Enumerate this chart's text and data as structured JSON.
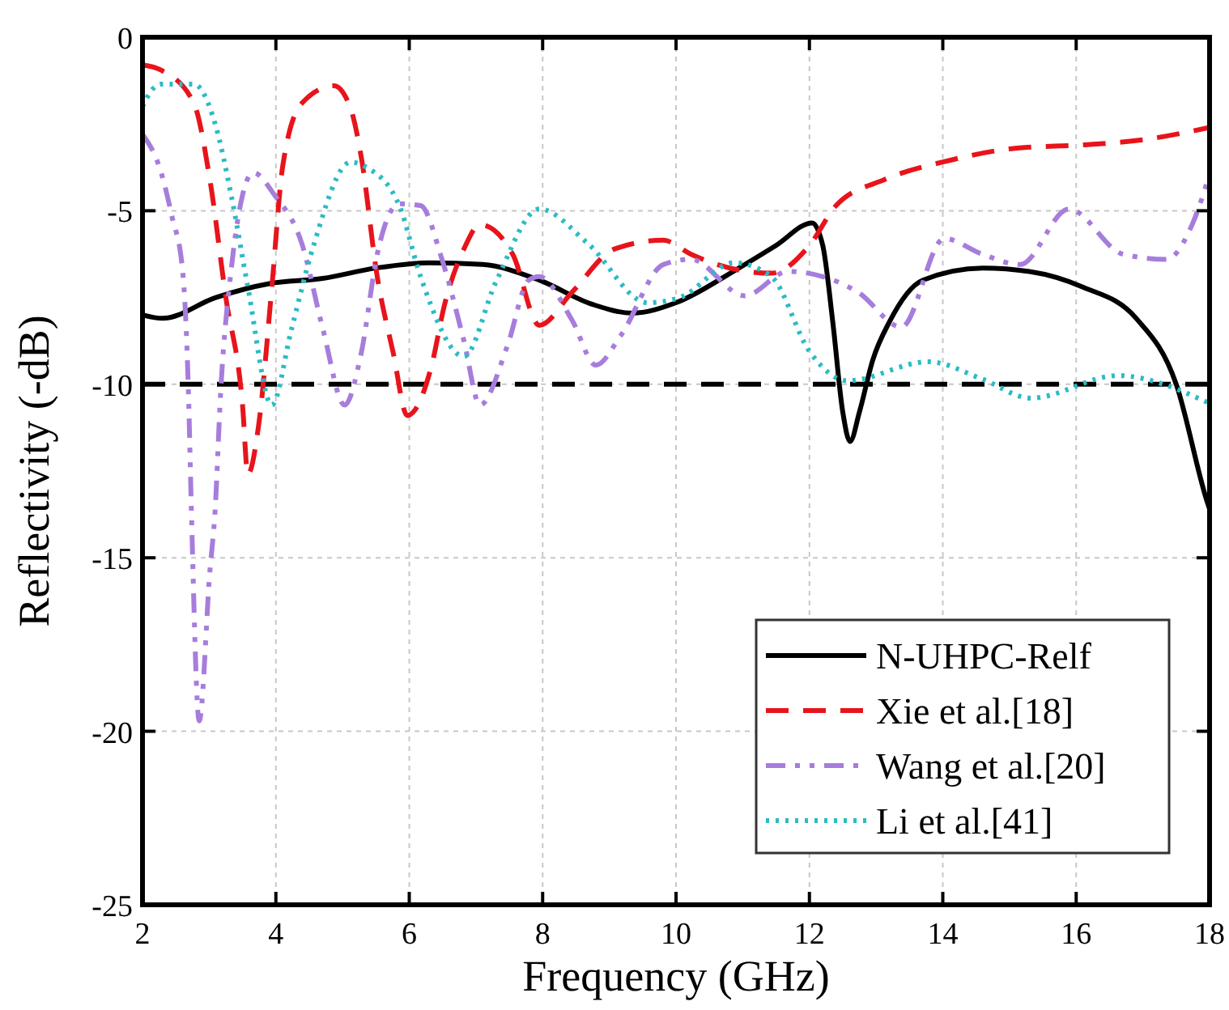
{
  "chart_data": {
    "type": "line",
    "xlabel": "Frequency (GHz)",
    "ylabel": "Reflectivity (-dB)",
    "xlim": [
      2,
      18
    ],
    "xticks": [
      2,
      4,
      6,
      8,
      10,
      12,
      14,
      16,
      18
    ],
    "ylim": [
      -25,
      0
    ],
    "yticks": [
      -25,
      -20,
      -15,
      -10,
      -5,
      0
    ],
    "grid": true,
    "legend": "bottom right",
    "ref_lines": [
      {
        "axis": "y",
        "value": -10,
        "color": "#000000",
        "line_style": "dashed"
      }
    ],
    "series": [
      {
        "name": "N-UHPC-Relf",
        "color": "#000000",
        "line_style": "solid",
        "x": [
          2,
          2.3,
          3.1,
          3.9,
          4.7,
          5.5,
          6.3,
          7.1,
          7.95,
          8.75,
          9.35,
          10.0,
          10.9,
          11.5,
          12.04,
          12.2,
          12.35,
          12.5,
          12.61,
          12.75,
          12.95,
          13.2,
          13.7,
          14.6,
          15.3,
          16.1,
          16.9,
          17.5,
          17.95,
          18
        ],
        "values": [
          -8.0,
          -8.1,
          -7.5,
          -7.1,
          -6.95,
          -6.65,
          -6.5,
          -6.55,
          -7.0,
          -7.7,
          -7.95,
          -7.65,
          -6.7,
          -6.0,
          -5.35,
          -6.0,
          -8.2,
          -10.8,
          -11.65,
          -10.8,
          -9.3,
          -8.2,
          -7.0,
          -6.65,
          -6.75,
          -7.2,
          -8.1,
          -10.0,
          -13.3,
          -13.6
        ]
      },
      {
        "name": "Xie et al.[18]",
        "color": "#e8141b",
        "line_style": "dashed",
        "x": [
          2,
          2.28,
          2.77,
          3.01,
          3.25,
          3.5,
          3.58,
          3.74,
          3.94,
          4.1,
          4.39,
          4.87,
          5.12,
          5.28,
          5.52,
          5.76,
          5.97,
          6.33,
          6.53,
          6.82,
          7.06,
          7.55,
          7.95,
          8.44,
          9.08,
          9.81,
          10.22,
          10.54,
          11.43,
          12.0,
          12.4,
          13.13,
          14.1,
          15.08,
          16.13,
          17.02,
          18
        ],
        "values": [
          -0.8,
          -0.95,
          -1.9,
          -4.1,
          -7.5,
          -10.6,
          -12.6,
          -11.2,
          -7.2,
          -3.75,
          -1.9,
          -1.4,
          -2.05,
          -3.45,
          -6.9,
          -9.1,
          -10.9,
          -9.5,
          -7.7,
          -6.1,
          -5.4,
          -6.25,
          -8.3,
          -7.35,
          -6.1,
          -5.85,
          -6.25,
          -6.5,
          -6.8,
          -6.0,
          -4.85,
          -4.1,
          -3.55,
          -3.2,
          -3.1,
          -2.95,
          -2.6
        ]
      },
      {
        "name": "Wang et al.[20]",
        "color": "#a77ddc",
        "line_style": "dashdot",
        "x": [
          2,
          2.28,
          2.44,
          2.6,
          2.69,
          2.73,
          2.85,
          3.01,
          3.09,
          3.17,
          3.33,
          3.5,
          3.66,
          3.98,
          4.39,
          4.71,
          5.03,
          5.28,
          5.52,
          5.85,
          6.17,
          6.49,
          6.82,
          7.06,
          7.47,
          7.79,
          7.95,
          8.44,
          8.8,
          9.17,
          9.81,
          10.22,
          11.03,
          11.68,
          12.73,
          13.38,
          14.02,
          14.59,
          15.16,
          15.89,
          16.7,
          17.35,
          17.75,
          18
        ],
        "values": [
          -2.8,
          -3.9,
          -5.15,
          -6.7,
          -10.3,
          -13.4,
          -19.7,
          -15.4,
          -13.6,
          -10.3,
          -6.7,
          -4.55,
          -3.9,
          -4.55,
          -5.95,
          -8.45,
          -10.6,
          -9.1,
          -6.25,
          -4.8,
          -4.85,
          -6.4,
          -8.75,
          -10.6,
          -8.9,
          -7.0,
          -6.9,
          -8.15,
          -9.45,
          -8.6,
          -6.55,
          -6.4,
          -7.45,
          -6.75,
          -7.35,
          -8.35,
          -5.8,
          -6.25,
          -6.55,
          -4.95,
          -6.25,
          -6.4,
          -5.35,
          -3.95
        ]
      },
      {
        "name": "Li et al.[41]",
        "color": "#2bbcc4",
        "line_style": "dotted",
        "x": [
          2,
          2.15,
          2.28,
          2.77,
          3.09,
          3.33,
          3.58,
          3.94,
          4.23,
          4.55,
          5.12,
          5.36,
          5.85,
          6.17,
          6.82,
          7.3,
          7.95,
          8.68,
          9.57,
          10.06,
          10.87,
          11.43,
          12.0,
          12.57,
          13.78,
          14.59,
          15.32,
          16.62,
          18
        ],
        "values": [
          -2.0,
          -1.5,
          -1.35,
          -1.35,
          -2.5,
          -4.55,
          -7.2,
          -10.6,
          -8.45,
          -6.1,
          -3.6,
          -3.75,
          -4.85,
          -6.9,
          -9.2,
          -7.05,
          -4.95,
          -5.95,
          -7.65,
          -7.5,
          -6.5,
          -6.9,
          -9.05,
          -9.9,
          -9.35,
          -9.85,
          -10.4,
          -9.75,
          -10.55
        ]
      }
    ]
  }
}
